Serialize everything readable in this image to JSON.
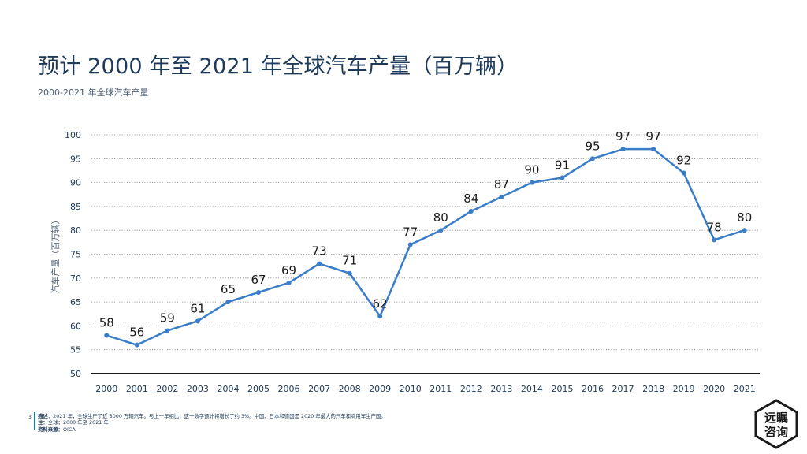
{
  "title": "预计 2000 年至 2021 年全球汽车产量（百万辆）",
  "subtitle": "2000-2021 年全球汽车产量",
  "chart_data": {
    "type": "line",
    "title": "",
    "xlabel": "",
    "ylabel": "汽车产量（百万辆）",
    "ylim": [
      50,
      100
    ],
    "yticks": [
      50,
      55,
      60,
      65,
      70,
      75,
      80,
      85,
      90,
      95,
      100
    ],
    "categories": [
      "2000",
      "2001",
      "2002",
      "2003",
      "2004",
      "2005",
      "2006",
      "2007",
      "2008",
      "2009",
      "2010",
      "2011",
      "2012",
      "2013",
      "2014",
      "2015",
      "2016",
      "2017",
      "2018",
      "2019",
      "2020",
      "2021"
    ],
    "series": [
      {
        "values": [
          58,
          56,
          59,
          61,
          65,
          67,
          69,
          73,
          71,
          62,
          77,
          80,
          84,
          87,
          90,
          91,
          95,
          97,
          97,
          92,
          78,
          80
        ]
      }
    ],
    "grid": "horizontal-dotted",
    "data_labels": true,
    "line_color": "#3a7dc9"
  },
  "footer": {
    "page": "3",
    "desc_label": "描述：",
    "desc_text": "2021 年，全球生产了近 8000 万辆汽车。与上一年相比，这一数字预计将增长了约 3%。中国、日本和德国是 2020 年最大的汽车和商用车生产国。",
    "note_label": "注：",
    "note_text": "全球；2000 年至 2021 年",
    "source_label": "资料来源：",
    "source_text": "OICA"
  },
  "logo": {
    "line1": "远瞩",
    "line2": "咨询"
  }
}
